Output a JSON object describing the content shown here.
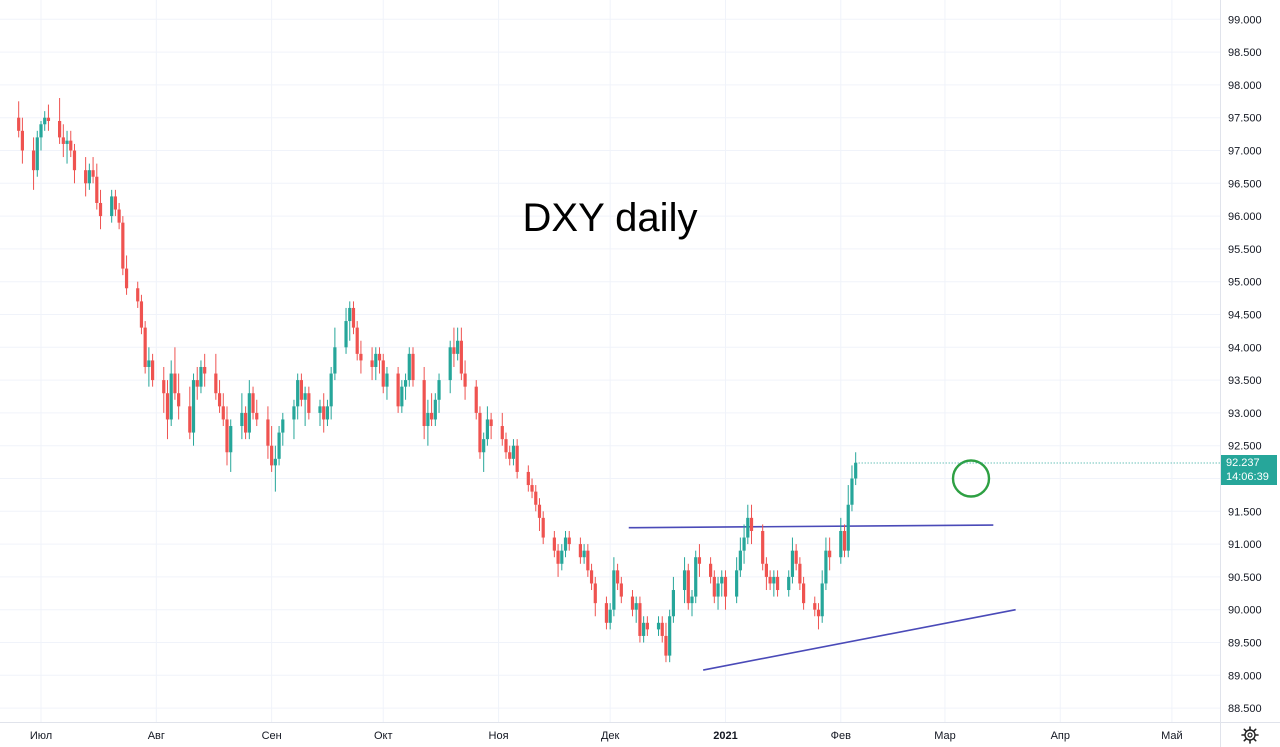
{
  "chart_data": {
    "type": "candlestick",
    "title": "DXY daily",
    "ylim": [
      88.3,
      99.1
    ],
    "y_ticks": [
      "88.500",
      "89.000",
      "89.500",
      "90.000",
      "90.500",
      "91.000",
      "91.500",
      "92.000",
      "92.500",
      "93.000",
      "93.500",
      "94.000",
      "94.500",
      "95.000",
      "95.500",
      "96.000",
      "96.500",
      "97.000",
      "97.500",
      "98.000",
      "98.500",
      "99.000"
    ],
    "x_ticks": [
      {
        "label": "Июл",
        "day": 0
      },
      {
        "label": "Авг",
        "day": 31
      },
      {
        "label": "Сен",
        "day": 62
      },
      {
        "label": "Окт",
        "day": 92
      },
      {
        "label": "Ноя",
        "day": 123
      },
      {
        "label": "Дек",
        "day": 153
      },
      {
        "label": "2021",
        "day": 184
      },
      {
        "label": "Фев",
        "day": 215
      },
      {
        "label": "Мар",
        "day": 243
      },
      {
        "label": "Апр",
        "day": 274
      },
      {
        "label": "Май",
        "day": 304
      }
    ],
    "last_price": {
      "value": "92.237",
      "countdown": "14:06:39"
    },
    "colors": {
      "up": "#26a69a",
      "down": "#ef5350",
      "trendline": "#4a4ab8",
      "marker": "#2ea043",
      "grid": "#f0f3fa",
      "badge": "#26a69a"
    },
    "trendlines": [
      {
        "name": "resistance",
        "from": {
          "day": 158,
          "price": 91.25
        },
        "to": {
          "day": 256,
          "price": 91.29
        }
      },
      {
        "name": "support",
        "from": {
          "day": 178,
          "price": 89.08
        },
        "to": {
          "day": 262,
          "price": 90.0
        }
      }
    ],
    "circle_marker": {
      "day": 250,
      "price": 92.0
    },
    "candles": [
      [
        -6,
        97.5,
        97.75,
        97.2,
        97.3
      ],
      [
        -5,
        97.3,
        97.5,
        96.8,
        97.0
      ],
      [
        -2,
        97.0,
        97.2,
        96.4,
        96.7
      ],
      [
        -1,
        96.7,
        97.3,
        96.6,
        97.2
      ],
      [
        0,
        97.2,
        97.45,
        97.0,
        97.4
      ],
      [
        1,
        97.4,
        97.6,
        97.3,
        97.5
      ],
      [
        2,
        97.5,
        97.7,
        97.3,
        97.45
      ],
      [
        5,
        97.45,
        97.8,
        97.1,
        97.2
      ],
      [
        6,
        97.2,
        97.4,
        96.9,
        97.1
      ],
      [
        7,
        97.1,
        97.3,
        96.8,
        97.15
      ],
      [
        8,
        97.15,
        97.3,
        96.9,
        97.0
      ],
      [
        9,
        97.0,
        97.1,
        96.5,
        96.7
      ],
      [
        12,
        96.7,
        96.9,
        96.3,
        96.5
      ],
      [
        13,
        96.5,
        96.8,
        96.4,
        96.7
      ],
      [
        14,
        96.7,
        96.9,
        96.5,
        96.6
      ],
      [
        15,
        96.6,
        96.8,
        96.1,
        96.2
      ],
      [
        16,
        96.2,
        96.4,
        95.8,
        96.0
      ],
      [
        19,
        96.0,
        96.4,
        95.9,
        96.3
      ],
      [
        20,
        96.3,
        96.4,
        96.0,
        96.1
      ],
      [
        21,
        96.1,
        96.2,
        95.8,
        95.9
      ],
      [
        22,
        95.9,
        96.0,
        95.1,
        95.2
      ],
      [
        23,
        95.2,
        95.4,
        94.8,
        94.9
      ],
      [
        26,
        94.9,
        95.0,
        94.6,
        94.7
      ],
      [
        27,
        94.7,
        94.8,
        94.2,
        94.3
      ],
      [
        28,
        94.3,
        94.4,
        93.6,
        93.7
      ],
      [
        29,
        93.7,
        94.0,
        93.4,
        93.8
      ],
      [
        30,
        93.8,
        93.9,
        93.4,
        93.5
      ],
      [
        33,
        93.5,
        93.7,
        93.0,
        93.3
      ],
      [
        34,
        93.3,
        93.5,
        92.6,
        92.9
      ],
      [
        35,
        92.9,
        93.8,
        92.8,
        93.6
      ],
      [
        36,
        93.6,
        94.0,
        93.2,
        93.3
      ],
      [
        37,
        93.3,
        93.6,
        92.9,
        93.1
      ],
      [
        40,
        93.1,
        93.4,
        92.6,
        92.7
      ],
      [
        41,
        92.7,
        93.6,
        92.5,
        93.5
      ],
      [
        42,
        93.5,
        93.7,
        93.2,
        93.4
      ],
      [
        43,
        93.4,
        93.8,
        93.3,
        93.7
      ],
      [
        44,
        93.7,
        93.9,
        93.4,
        93.6
      ],
      [
        47,
        93.6,
        93.9,
        93.2,
        93.3
      ],
      [
        48,
        93.3,
        93.5,
        93.0,
        93.1
      ],
      [
        49,
        93.1,
        93.3,
        92.8,
        92.9
      ],
      [
        50,
        92.9,
        93.1,
        92.2,
        92.4
      ],
      [
        51,
        92.4,
        92.9,
        92.1,
        92.8
      ],
      [
        54,
        92.8,
        93.3,
        92.6,
        93.0
      ],
      [
        55,
        93.0,
        93.1,
        92.6,
        92.7
      ],
      [
        56,
        92.7,
        93.5,
        92.6,
        93.3
      ],
      [
        57,
        93.3,
        93.4,
        92.9,
        93.0
      ],
      [
        58,
        93.0,
        93.2,
        92.8,
        92.9
      ],
      [
        61,
        92.9,
        93.1,
        92.3,
        92.5
      ],
      [
        62,
        92.5,
        92.8,
        92.1,
        92.2
      ],
      [
        63,
        92.2,
        92.5,
        91.8,
        92.3
      ],
      [
        64,
        92.3,
        92.8,
        92.2,
        92.7
      ],
      [
        65,
        92.7,
        93.0,
        92.5,
        92.9
      ],
      [
        68,
        92.9,
        93.2,
        92.6,
        93.1
      ],
      [
        69,
        93.1,
        93.6,
        92.9,
        93.5
      ],
      [
        70,
        93.5,
        93.6,
        93.1,
        93.2
      ],
      [
        71,
        93.2,
        93.4,
        92.8,
        93.3
      ],
      [
        72,
        93.3,
        93.4,
        92.9,
        93.0
      ],
      [
        75,
        93.0,
        93.2,
        92.8,
        93.1
      ],
      [
        76,
        93.1,
        93.3,
        92.7,
        92.9
      ],
      [
        77,
        92.9,
        93.2,
        92.8,
        93.1
      ],
      [
        78,
        93.1,
        93.7,
        92.9,
        93.6
      ],
      [
        79,
        93.6,
        94.3,
        93.5,
        94.0
      ],
      [
        82,
        94.0,
        94.6,
        93.9,
        94.4
      ],
      [
        83,
        94.4,
        94.7,
        94.1,
        94.6
      ],
      [
        84,
        94.6,
        94.7,
        94.2,
        94.3
      ],
      [
        85,
        94.3,
        94.4,
        93.8,
        93.9
      ],
      [
        86,
        93.9,
        94.1,
        93.6,
        93.8
      ],
      [
        89,
        93.8,
        94.0,
        93.5,
        93.7
      ],
      [
        90,
        93.7,
        94.0,
        93.5,
        93.9
      ],
      [
        91,
        93.9,
        94.0,
        93.6,
        93.8
      ],
      [
        92,
        93.8,
        93.9,
        93.3,
        93.4
      ],
      [
        93,
        93.4,
        93.7,
        93.2,
        93.6
      ],
      [
        96,
        93.6,
        93.7,
        93.0,
        93.1
      ],
      [
        97,
        93.1,
        93.5,
        93.0,
        93.4
      ],
      [
        98,
        93.4,
        93.6,
        93.2,
        93.5
      ],
      [
        99,
        93.5,
        94.0,
        93.4,
        93.9
      ],
      [
        100,
        93.9,
        94.0,
        93.4,
        93.5
      ],
      [
        103,
        93.5,
        93.7,
        92.6,
        92.8
      ],
      [
        104,
        92.8,
        93.2,
        92.5,
        93.0
      ],
      [
        105,
        93.0,
        93.3,
        92.8,
        92.9
      ],
      [
        106,
        92.9,
        93.3,
        92.8,
        93.2
      ],
      [
        107,
        93.2,
        93.6,
        93.0,
        93.5
      ],
      [
        110,
        93.5,
        94.1,
        93.3,
        94.0
      ],
      [
        111,
        94.0,
        94.3,
        93.7,
        93.9
      ],
      [
        112,
        93.9,
        94.3,
        93.8,
        94.1
      ],
      [
        113,
        94.1,
        94.3,
        93.5,
        93.6
      ],
      [
        114,
        93.6,
        93.8,
        93.2,
        93.4
      ],
      [
        117,
        93.4,
        93.5,
        92.9,
        93.0
      ],
      [
        118,
        93.0,
        93.1,
        92.3,
        92.4
      ],
      [
        119,
        92.4,
        92.7,
        92.1,
        92.6
      ],
      [
        120,
        92.6,
        93.1,
        92.5,
        92.9
      ],
      [
        121,
        92.9,
        93.0,
        92.6,
        92.8
      ],
      [
        124,
        92.8,
        93.0,
        92.5,
        92.6
      ],
      [
        125,
        92.6,
        92.7,
        92.3,
        92.4
      ],
      [
        126,
        92.4,
        92.5,
        92.2,
        92.3
      ],
      [
        127,
        92.3,
        92.6,
        92.2,
        92.5
      ],
      [
        128,
        92.5,
        92.6,
        92.0,
        92.1
      ],
      [
        131,
        92.1,
        92.2,
        91.8,
        91.9
      ],
      [
        132,
        91.9,
        92.0,
        91.7,
        91.8
      ],
      [
        133,
        91.8,
        91.9,
        91.5,
        91.6
      ],
      [
        134,
        91.6,
        91.7,
        91.2,
        91.4
      ],
      [
        135,
        91.4,
        91.5,
        91.0,
        91.1
      ],
      [
        138,
        91.1,
        91.2,
        90.8,
        90.9
      ],
      [
        139,
        90.9,
        91.0,
        90.5,
        90.7
      ],
      [
        140,
        90.7,
        91.0,
        90.6,
        90.9
      ],
      [
        141,
        90.9,
        91.2,
        90.8,
        91.1
      ],
      [
        142,
        91.1,
        91.2,
        90.9,
        91.0
      ],
      [
        145,
        91.0,
        91.1,
        90.7,
        90.8
      ],
      [
        146,
        90.8,
        91.0,
        90.7,
        90.9
      ],
      [
        147,
        90.9,
        91.0,
        90.5,
        90.6
      ],
      [
        148,
        90.6,
        90.7,
        90.3,
        90.4
      ],
      [
        149,
        90.4,
        90.5,
        89.9,
        90.1
      ],
      [
        152,
        90.1,
        90.2,
        89.7,
        89.8
      ],
      [
        153,
        89.8,
        90.1,
        89.7,
        90.0
      ],
      [
        154,
        90.0,
        90.8,
        89.9,
        90.6
      ],
      [
        155,
        90.6,
        90.7,
        90.3,
        90.4
      ],
      [
        156,
        90.4,
        90.5,
        90.1,
        90.2
      ],
      [
        159,
        90.2,
        90.3,
        89.9,
        90.0
      ],
      [
        160,
        90.0,
        90.2,
        89.8,
        90.1
      ],
      [
        161,
        90.1,
        90.2,
        89.5,
        89.6
      ],
      [
        162,
        89.6,
        89.9,
        89.5,
        89.8
      ],
      [
        163,
        89.8,
        89.9,
        89.6,
        89.7
      ],
      [
        166,
        89.7,
        89.9,
        89.6,
        89.8
      ],
      [
        167,
        89.8,
        89.9,
        89.5,
        89.6
      ],
      [
        168,
        89.6,
        89.8,
        89.2,
        89.3
      ],
      [
        169,
        89.3,
        90.0,
        89.2,
        89.9
      ],
      [
        170,
        89.9,
        90.5,
        89.8,
        90.3
      ],
      [
        173,
        90.3,
        90.8,
        90.1,
        90.6
      ],
      [
        174,
        90.6,
        90.7,
        90.0,
        90.1
      ],
      [
        175,
        90.1,
        90.3,
        89.9,
        90.2
      ],
      [
        176,
        90.2,
        90.9,
        90.1,
        90.8
      ],
      [
        177,
        90.8,
        91.0,
        90.5,
        90.7
      ],
      [
        180,
        90.7,
        90.8,
        90.4,
        90.5
      ],
      [
        181,
        90.5,
        90.6,
        90.1,
        90.2
      ],
      [
        182,
        90.2,
        90.5,
        90.0,
        90.4
      ],
      [
        183,
        90.4,
        90.6,
        90.2,
        90.5
      ],
      [
        184,
        90.5,
        90.6,
        90.0,
        90.2
      ],
      [
        187,
        90.2,
        90.8,
        90.1,
        90.6
      ],
      [
        188,
        90.6,
        91.1,
        90.5,
        90.9
      ],
      [
        189,
        90.9,
        91.3,
        90.7,
        91.1
      ],
      [
        190,
        91.1,
        91.6,
        91.0,
        91.4
      ],
      [
        191,
        91.4,
        91.6,
        91.0,
        91.2
      ],
      [
        194,
        91.2,
        91.3,
        90.6,
        90.7
      ],
      [
        195,
        90.7,
        90.8,
        90.3,
        90.5
      ],
      [
        196,
        90.5,
        90.6,
        90.3,
        90.4
      ],
      [
        197,
        90.4,
        90.6,
        90.2,
        90.5
      ],
      [
        198,
        90.5,
        90.6,
        90.2,
        90.3
      ],
      [
        201,
        90.3,
        90.6,
        90.2,
        90.5
      ],
      [
        202,
        90.5,
        91.1,
        90.4,
        90.9
      ],
      [
        203,
        90.9,
        91.0,
        90.6,
        90.7
      ],
      [
        204,
        90.7,
        90.8,
        90.3,
        90.4
      ],
      [
        205,
        90.4,
        90.5,
        90.0,
        90.1
      ],
      [
        208,
        90.1,
        90.2,
        89.9,
        90.0
      ],
      [
        209,
        90.0,
        90.1,
        89.7,
        89.9
      ],
      [
        210,
        89.9,
        90.6,
        89.8,
        90.4
      ],
      [
        211,
        90.4,
        91.1,
        90.3,
        90.9
      ],
      [
        212,
        90.9,
        91.1,
        90.6,
        90.8
      ],
      [
        215,
        90.8,
        91.4,
        90.7,
        91.2
      ],
      [
        216,
        91.2,
        91.3,
        90.8,
        90.9
      ],
      [
        217,
        90.9,
        91.9,
        90.8,
        91.6
      ],
      [
        218,
        91.6,
        92.2,
        91.5,
        92.0
      ],
      [
        219,
        92.0,
        92.4,
        91.9,
        92.24
      ]
    ]
  }
}
